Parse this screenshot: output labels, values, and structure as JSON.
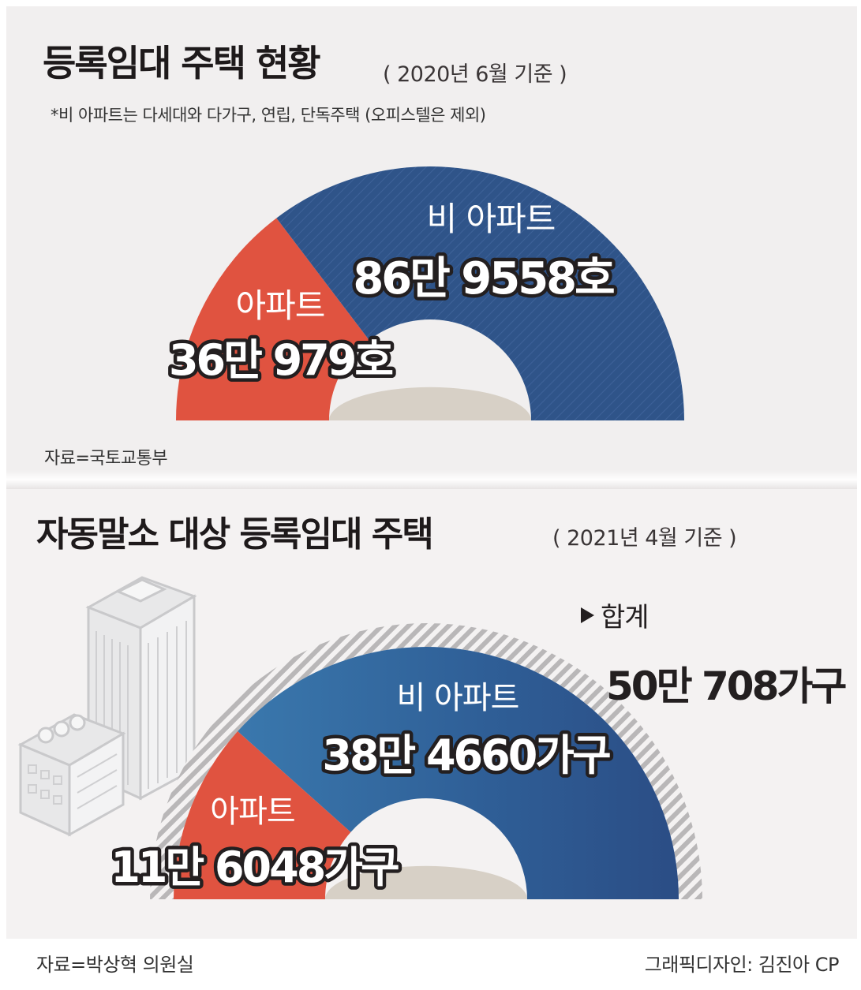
{
  "top_section": {
    "title": "등록임대 주택 현황",
    "basis": "( 2020년 6월 기준 )",
    "note": "*비 아파트는 다세대와 다가구, 연립, 단독주택 (오피스텔은 제외)",
    "source": "자료=국토교통부"
  },
  "bottom_section": {
    "title": "자동말소 대상 등록임대 주택",
    "basis": "( 2021년 4월 기준 )",
    "total_label": "합계",
    "total_value": "50만 708가구",
    "source": "자료=박상혁 의원실"
  },
  "credit": "그래픽디자인: 김진아 CP",
  "colors": {
    "apartment": "#e05340",
    "non_apartment": "#2f5489",
    "non_apartment_light": "#3b74a8",
    "inner_ground": "#d7d0c6"
  },
  "chart_data": [
    {
      "type": "pie",
      "shape": "half-donut",
      "categories": [
        "아파트",
        "비 아파트"
      ],
      "values": [
        360979,
        869558
      ],
      "value_labels": [
        "36만 979호",
        "86만 9558호"
      ],
      "category_labels": [
        "아파트",
        "비 아파트"
      ]
    },
    {
      "type": "pie",
      "shape": "half-donut",
      "categories": [
        "아파트",
        "비 아파트"
      ],
      "values": [
        116048,
        384660
      ],
      "value_labels": [
        "11만 6048가구",
        "38만 4660가구"
      ],
      "category_labels": [
        "아파트",
        "비 아파트"
      ],
      "total": 500708
    }
  ]
}
